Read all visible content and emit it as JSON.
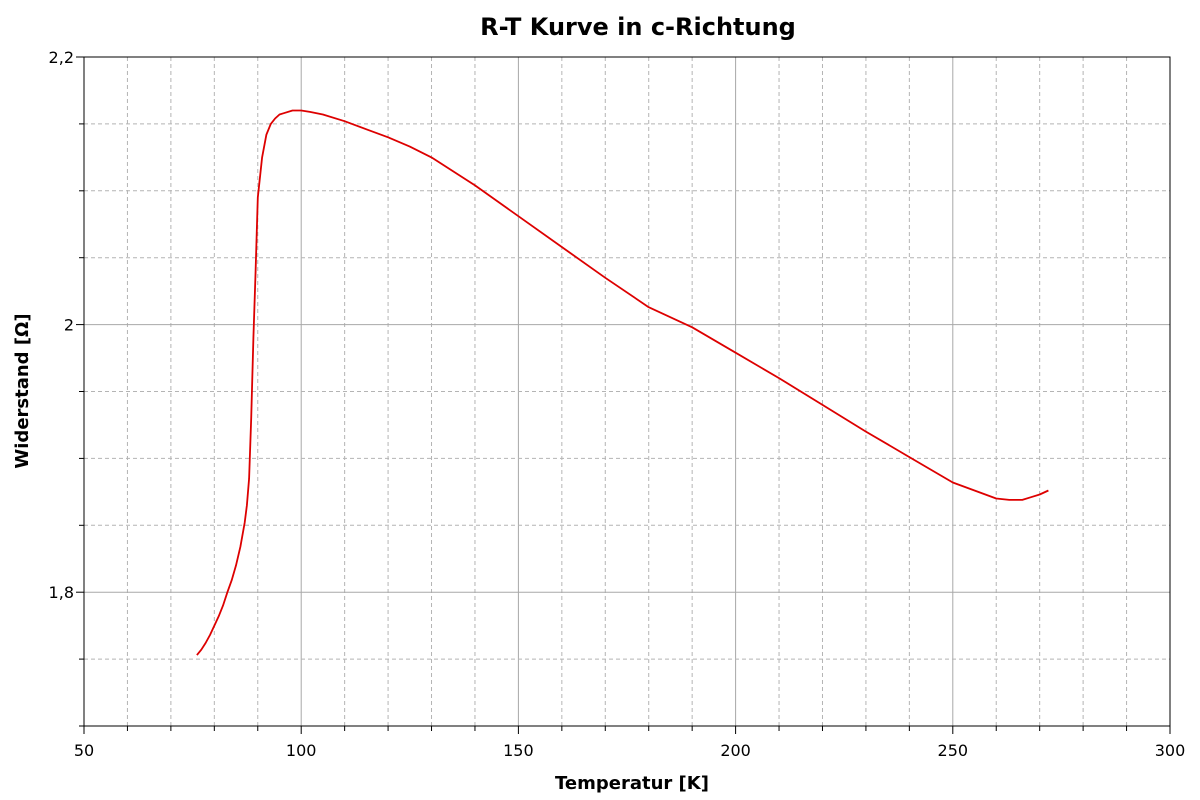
{
  "chart_data": {
    "type": "line",
    "title": "R-T Kurve in c-Richtung",
    "xlabel": "Temperatur [K]",
    "ylabel": "Widerstand [Ω]",
    "xlim": [
      50,
      300
    ],
    "ylim": [
      1.7,
      2.2
    ],
    "x_major_ticks": [
      50,
      100,
      150,
      200,
      250,
      300
    ],
    "x_tick_labels": [
      "50",
      "100",
      "150",
      "200",
      "250",
      "300"
    ],
    "x_minor_step": 10,
    "y_major_ticks": [
      1.8,
      2.0,
      2.2
    ],
    "y_tick_labels": [
      "1,8",
      "2",
      "2,2"
    ],
    "y_minor_step": 0.05,
    "grid": true,
    "legend": "none",
    "series": [
      {
        "color": "#dd0000",
        "x": [
          76,
          77,
          78,
          79,
          80,
          81,
          82,
          83,
          84,
          85,
          86,
          87,
          87.5,
          88,
          88.5,
          89,
          89.5,
          90,
          91,
          92,
          93,
          94,
          95,
          96,
          98,
          100,
          102,
          105,
          110,
          115,
          120,
          125,
          130,
          140,
          150,
          160,
          170,
          180,
          190,
          200,
          210,
          220,
          230,
          240,
          250,
          255,
          260,
          263,
          266,
          268,
          270,
          272
        ],
        "y": [
          1.753,
          1.757,
          1.762,
          1.768,
          1.775,
          1.782,
          1.79,
          1.8,
          1.809,
          1.82,
          1.834,
          1.852,
          1.865,
          1.885,
          1.93,
          1.99,
          2.04,
          2.095,
          2.125,
          2.142,
          2.15,
          2.154,
          2.157,
          2.158,
          2.16,
          2.16,
          2.159,
          2.157,
          2.152,
          2.146,
          2.14,
          2.133,
          2.125,
          2.104,
          2.081,
          2.058,
          2.035,
          2.013,
          1.998,
          1.979,
          1.96,
          1.94,
          1.92,
          1.901,
          1.882,
          1.876,
          1.87,
          1.869,
          1.869,
          1.871,
          1.873,
          1.876
        ]
      }
    ]
  }
}
